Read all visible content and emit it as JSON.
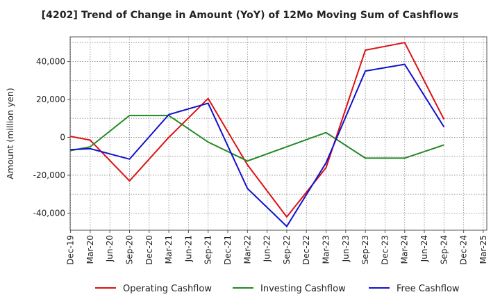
{
  "chart_data": {
    "type": "line",
    "title": "[4202]  Trend of Change in Amount (YoY) of 12Mo Moving Sum of Cashflows",
    "xlabel": "",
    "ylabel": "Amount (million yen)",
    "ylim": [
      -49000,
      53000
    ],
    "yticks": [
      -40000,
      -20000,
      0,
      20000,
      40000
    ],
    "ytick_labels": [
      "-40,000",
      "-20,000",
      "0",
      "20,000",
      "40,000"
    ],
    "categories": [
      "Dec-19",
      "Mar-20",
      "Jun-20",
      "Sep-20",
      "Dec-20",
      "Mar-21",
      "Jun-21",
      "Sep-21",
      "Dec-21",
      "Mar-22",
      "Jun-22",
      "Sep-22",
      "Dec-22",
      "Mar-23",
      "Jun-23",
      "Sep-23",
      "Dec-23",
      "Mar-24",
      "Jun-24",
      "Sep-24",
      "Dec-24",
      "Mar-25"
    ],
    "grid": true,
    "legend_position": "bottom",
    "series": [
      {
        "name": "Operating Cashflow",
        "color": "#dd1111",
        "values": [
          500,
          -1500,
          null,
          -23000,
          null,
          0,
          null,
          20500,
          null,
          -14500,
          null,
          -42000,
          null,
          -16000,
          null,
          46000,
          null,
          50000,
          null,
          9500,
          null,
          null
        ]
      },
      {
        "name": "Investing Cashflow",
        "color": "#228822",
        "values": [
          -7000,
          -5000,
          null,
          11500,
          null,
          11500,
          null,
          -2500,
          null,
          -12500,
          null,
          -5000,
          null,
          2500,
          null,
          -11000,
          null,
          -11000,
          null,
          -4000,
          null,
          null
        ]
      },
      {
        "name": "Free Cashflow",
        "color": "#1111cc",
        "values": [
          -6500,
          -6000,
          null,
          -11500,
          null,
          12000,
          null,
          18000,
          null,
          -27000,
          null,
          -47000,
          null,
          -13500,
          null,
          35000,
          null,
          38500,
          null,
          5500,
          null,
          null
        ]
      }
    ]
  }
}
